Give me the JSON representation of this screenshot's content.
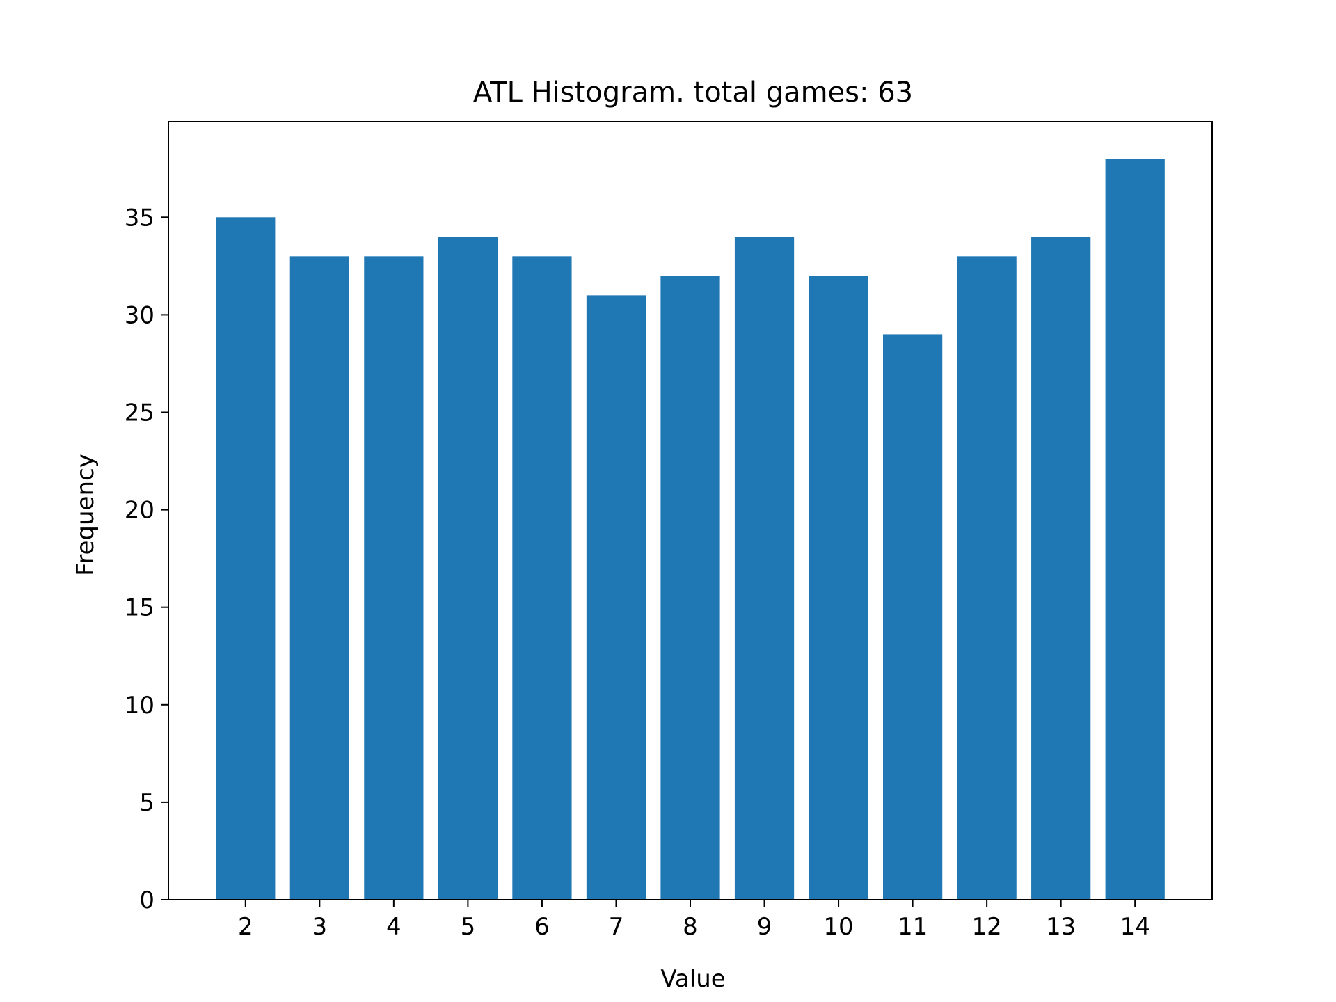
{
  "chart_data": {
    "type": "bar",
    "title": "ATL Histogram. total games: 63",
    "xlabel": "Value",
    "ylabel": "Frequency",
    "categories": [
      "2",
      "3",
      "4",
      "5",
      "6",
      "7",
      "8",
      "9",
      "10",
      "11",
      "12",
      "13",
      "14"
    ],
    "x": [
      2,
      3,
      4,
      5,
      6,
      7,
      8,
      9,
      10,
      11,
      12,
      13,
      14
    ],
    "values": [
      35,
      33,
      33,
      34,
      33,
      31,
      32,
      34,
      32,
      29,
      33,
      34,
      38
    ],
    "xlim": [
      0.96,
      15.04
    ],
    "ylim": [
      0,
      39.9
    ],
    "yticks": [
      0,
      5,
      10,
      15,
      20,
      25,
      30,
      35
    ],
    "grid": false,
    "bar_color": "#1f77b4"
  }
}
